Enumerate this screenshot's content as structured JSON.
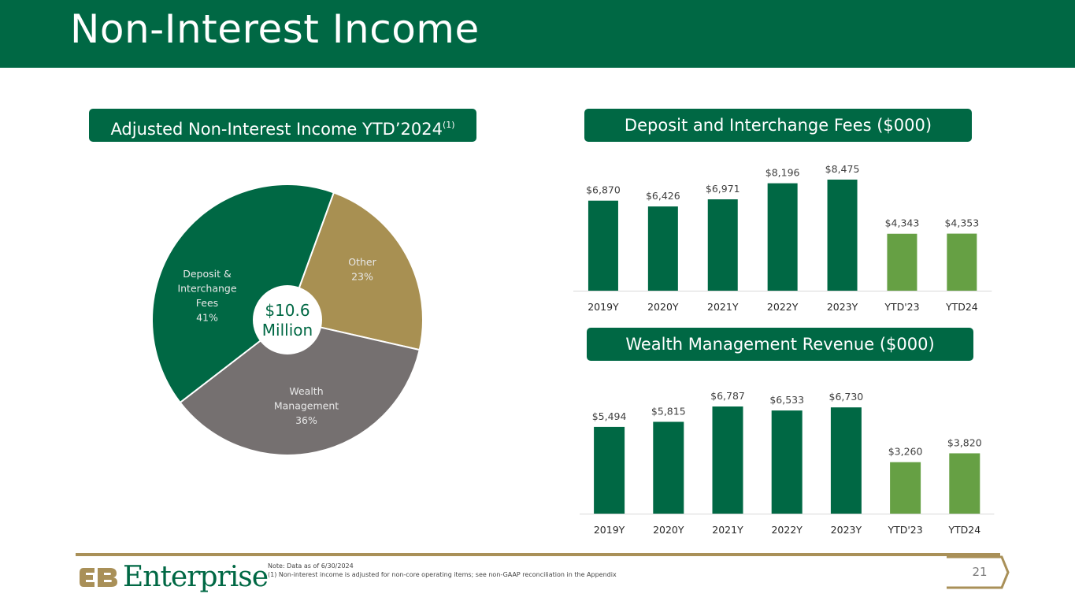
{
  "header": {
    "title": "Non-Interest Income"
  },
  "pie_section": {
    "title": "Adjusted Non-Interest Income YTD’2024",
    "title_note": "(1)"
  },
  "top_bar_section": {
    "title": "Deposit and Interchange Fees ($000)"
  },
  "bottom_bar_section": {
    "title": "Wealth Management Revenue ($000)"
  },
  "colors": {
    "brand_green": "#006844",
    "ytd_green": "#66A044",
    "gold": "#A99058",
    "other_gold": "#A89052",
    "wealth_gray": "#757070"
  },
  "chart_data": [
    {
      "type": "pie",
      "donut": true,
      "center_label": [
        "$10.6",
        "Million"
      ],
      "slices": [
        {
          "name": "Other",
          "value": 23,
          "label": "23%",
          "color": "#A89052"
        },
        {
          "name": "Wealth Management",
          "value": 36,
          "label": "36%",
          "color": "#757070"
        },
        {
          "name": "Deposit & Interchange Fees",
          "value": 41,
          "label": "41%",
          "color": "#006844"
        }
      ]
    },
    {
      "type": "bar",
      "categories": [
        "2019Y",
        "2020Y",
        "2021Y",
        "2022Y",
        "2023Y",
        "YTD'23",
        "YTD24"
      ],
      "values": [
        6870,
        6426,
        6971,
        8196,
        8475,
        4343,
        4353
      ],
      "data_labels": [
        "$6,870",
        "$6,426",
        "$6,971",
        "$8,196",
        "$8,475",
        "$4,343",
        "$4,353"
      ],
      "bar_colors": [
        "#006844",
        "#006844",
        "#006844",
        "#006844",
        "#006844",
        "#66A044",
        "#66A044"
      ],
      "ylim": [
        0,
        8475
      ]
    },
    {
      "type": "bar",
      "categories": [
        "2019Y",
        "2020Y",
        "2021Y",
        "2022Y",
        "2023Y",
        "YTD'23",
        "YTD24"
      ],
      "values": [
        5494,
        5815,
        6787,
        6533,
        6730,
        3260,
        3820
      ],
      "data_labels": [
        "$5,494",
        "$5,815",
        "$6,787",
        "$6,533",
        "$6,730",
        "$3,260",
        "$3,820"
      ],
      "bar_colors": [
        "#006844",
        "#006844",
        "#006844",
        "#006844",
        "#006844",
        "#66A044",
        "#66A044"
      ],
      "ylim": [
        0,
        6787
      ]
    }
  ],
  "footer": {
    "logo_text": "Enterprise",
    "note_line1": "Note: Data as of 6/30/2024",
    "note_line2": "(1) Non-interest income is adjusted for non-core operating items; see non-GAAP reconciliation in the Appendix",
    "page_number": "21"
  }
}
